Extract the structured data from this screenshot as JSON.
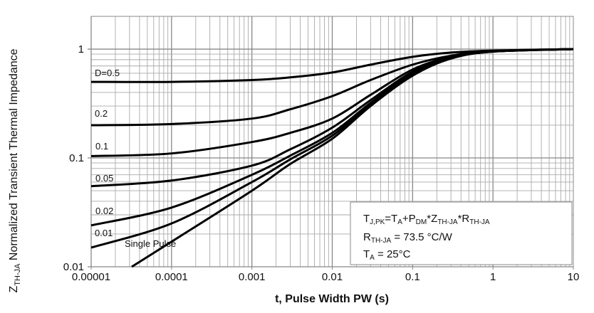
{
  "chart_data": {
    "type": "line",
    "title": "",
    "xlabel": "t, Pulse Width PW (s)",
    "ylabel_main": "Z",
    "ylabel_sub": "TH-JA",
    "ylabel_rest": " Normalized Transient Thermal Impedance",
    "xscale": "log",
    "yscale": "log",
    "xlim": [
      1e-05,
      10
    ],
    "ylim": [
      0.01,
      2
    ],
    "grid": true,
    "x_ticks": [
      1e-05,
      0.0001,
      0.001,
      0.01,
      0.1,
      1,
      10
    ],
    "x_tick_labels": [
      "0.00001",
      "0.0001",
      "0.001",
      "0.01",
      "0.1",
      "1",
      "10"
    ],
    "y_ticks": [
      0.01,
      0.1,
      1
    ],
    "y_tick_labels": [
      "0.01",
      "0.1",
      "1"
    ],
    "series": [
      {
        "name": "D=0.5",
        "label": "D=0.5",
        "x": [
          1e-05,
          0.0001,
          0.001,
          0.003,
          0.01,
          0.03,
          0.1,
          0.3,
          1,
          10
        ],
        "y": [
          0.5,
          0.5,
          0.52,
          0.55,
          0.61,
          0.72,
          0.85,
          0.93,
          0.97,
          1.0
        ]
      },
      {
        "name": "0.2",
        "label": "0.2",
        "x": [
          1e-05,
          0.0001,
          0.001,
          0.003,
          0.01,
          0.03,
          0.1,
          0.3,
          1,
          10
        ],
        "y": [
          0.2,
          0.205,
          0.23,
          0.28,
          0.37,
          0.52,
          0.72,
          0.87,
          0.96,
          1.0
        ]
      },
      {
        "name": "0.1",
        "label": "0.1",
        "x": [
          1e-05,
          0.0001,
          0.001,
          0.003,
          0.01,
          0.03,
          0.1,
          0.3,
          1,
          10
        ],
        "y": [
          0.104,
          0.11,
          0.14,
          0.17,
          0.23,
          0.38,
          0.65,
          0.85,
          0.95,
          1.0
        ]
      },
      {
        "name": "0.05",
        "label": "0.05",
        "x": [
          1e-05,
          0.0001,
          0.001,
          0.003,
          0.01,
          0.03,
          0.1,
          0.3,
          1,
          10
        ],
        "y": [
          0.055,
          0.062,
          0.085,
          0.12,
          0.19,
          0.34,
          0.62,
          0.84,
          0.95,
          1.0
        ]
      },
      {
        "name": "0.02",
        "label": "0.02",
        "x": [
          1e-05,
          0.0001,
          0.001,
          0.003,
          0.01,
          0.03,
          0.1,
          0.3,
          1,
          10
        ],
        "y": [
          0.024,
          0.035,
          0.07,
          0.105,
          0.17,
          0.32,
          0.6,
          0.83,
          0.95,
          1.0
        ]
      },
      {
        "name": "0.01",
        "label": "0.01",
        "x": [
          1e-05,
          0.0001,
          0.001,
          0.003,
          0.01,
          0.03,
          0.1,
          0.3,
          1,
          10
        ],
        "y": [
          0.015,
          0.025,
          0.06,
          0.097,
          0.16,
          0.31,
          0.58,
          0.82,
          0.95,
          1.0
        ]
      },
      {
        "name": "Single Pulse",
        "label": "Single Pulse",
        "x": [
          3.2e-05,
          0.0001,
          0.001,
          0.003,
          0.01,
          0.03,
          0.1,
          0.3,
          1,
          10
        ],
        "y": [
          0.01,
          0.017,
          0.05,
          0.088,
          0.15,
          0.3,
          0.57,
          0.82,
          0.95,
          1.0
        ]
      }
    ],
    "annotation": {
      "line1": {
        "a": "T",
        "a_sub": "J,PK",
        "b": "=T",
        "b_sub": "A",
        "c": "+P",
        "c_sub": "DM",
        "d": "*Z",
        "d_sub": "TH-JA",
        "e": "*R",
        "e_sub": "TH-JA"
      },
      "line2": {
        "a": "R",
        "a_sub": "TH-JA",
        "b": " = 73.5 °C/W"
      },
      "line3": {
        "a": "T",
        "a_sub": "A",
        "b": " = 25°C"
      }
    }
  }
}
